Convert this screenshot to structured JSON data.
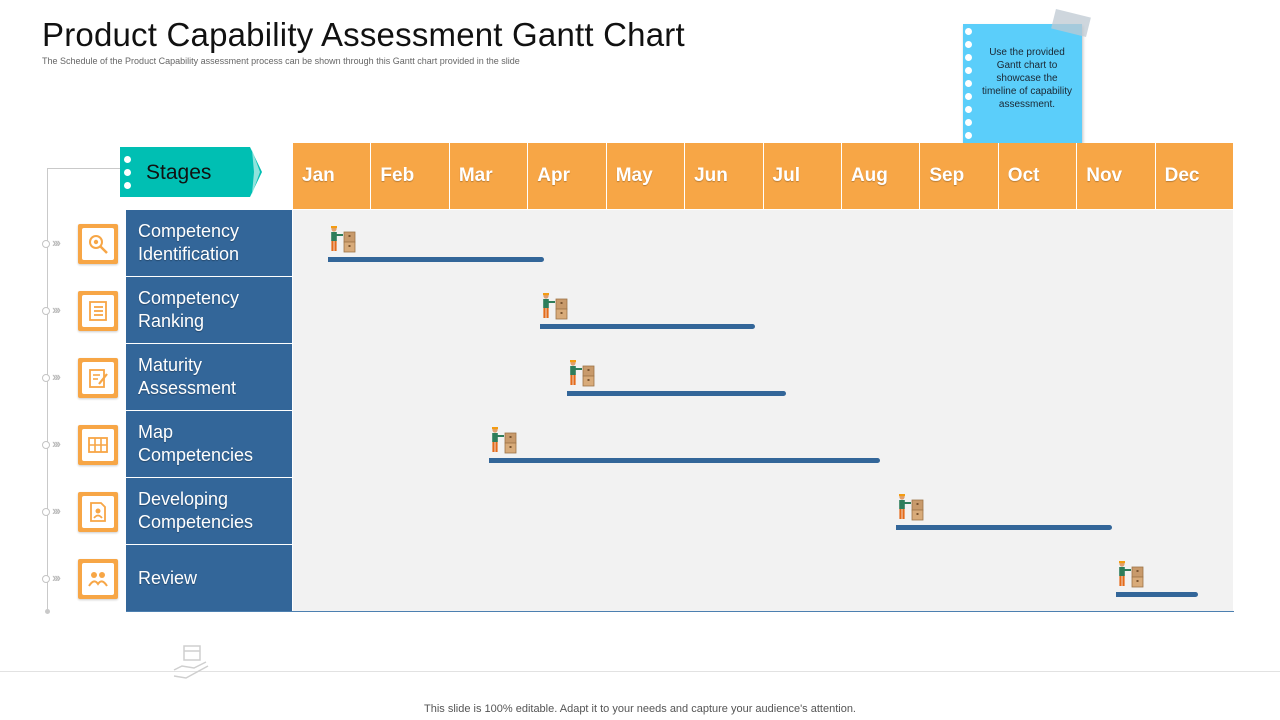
{
  "header": {
    "title": "Product Capability Assessment Gantt Chart",
    "subtitle": "The Schedule of the Product Capability assessment process can be shown through this Gantt chart provided in the slide"
  },
  "note": {
    "text": "Use the provided Gantt chart to showcase the timeline of capability assessment."
  },
  "footer": {
    "text": "This slide is 100% editable. Adapt it to your needs and capture your audience's attention."
  },
  "colors": {
    "month_header": "#f7a646",
    "stage_fill": "#336699",
    "bar": "#336699",
    "stages_tag": "#00bfb3",
    "note": "#5bcefa",
    "grid_bg": "#f2f2f2"
  },
  "chart_data": {
    "type": "gantt",
    "stages_label": "Stages",
    "months": [
      "Jan",
      "Feb",
      "Mar",
      "Apr",
      "May",
      "Jun",
      "Jul",
      "Aug",
      "Sep",
      "Oct",
      "Nov",
      "Dec"
    ],
    "tasks": [
      {
        "label": "Competency Identification",
        "start": 0.45,
        "end": 3.2,
        "icon": "search-gear-icon"
      },
      {
        "label": "Competency Ranking",
        "start": 3.15,
        "end": 5.9,
        "icon": "ranking-list-icon"
      },
      {
        "label": "Maturity Assessment",
        "start": 3.5,
        "end": 6.3,
        "icon": "clipboard-edit-icon"
      },
      {
        "label": "Map Competencies",
        "start": 2.5,
        "end": 7.5,
        "icon": "map-grid-icon"
      },
      {
        "label": "Developing Competencies",
        "start": 7.7,
        "end": 10.45,
        "icon": "document-user-icon"
      },
      {
        "label": "Review",
        "start": 10.5,
        "end": 11.55,
        "icon": "people-review-icon"
      }
    ]
  }
}
